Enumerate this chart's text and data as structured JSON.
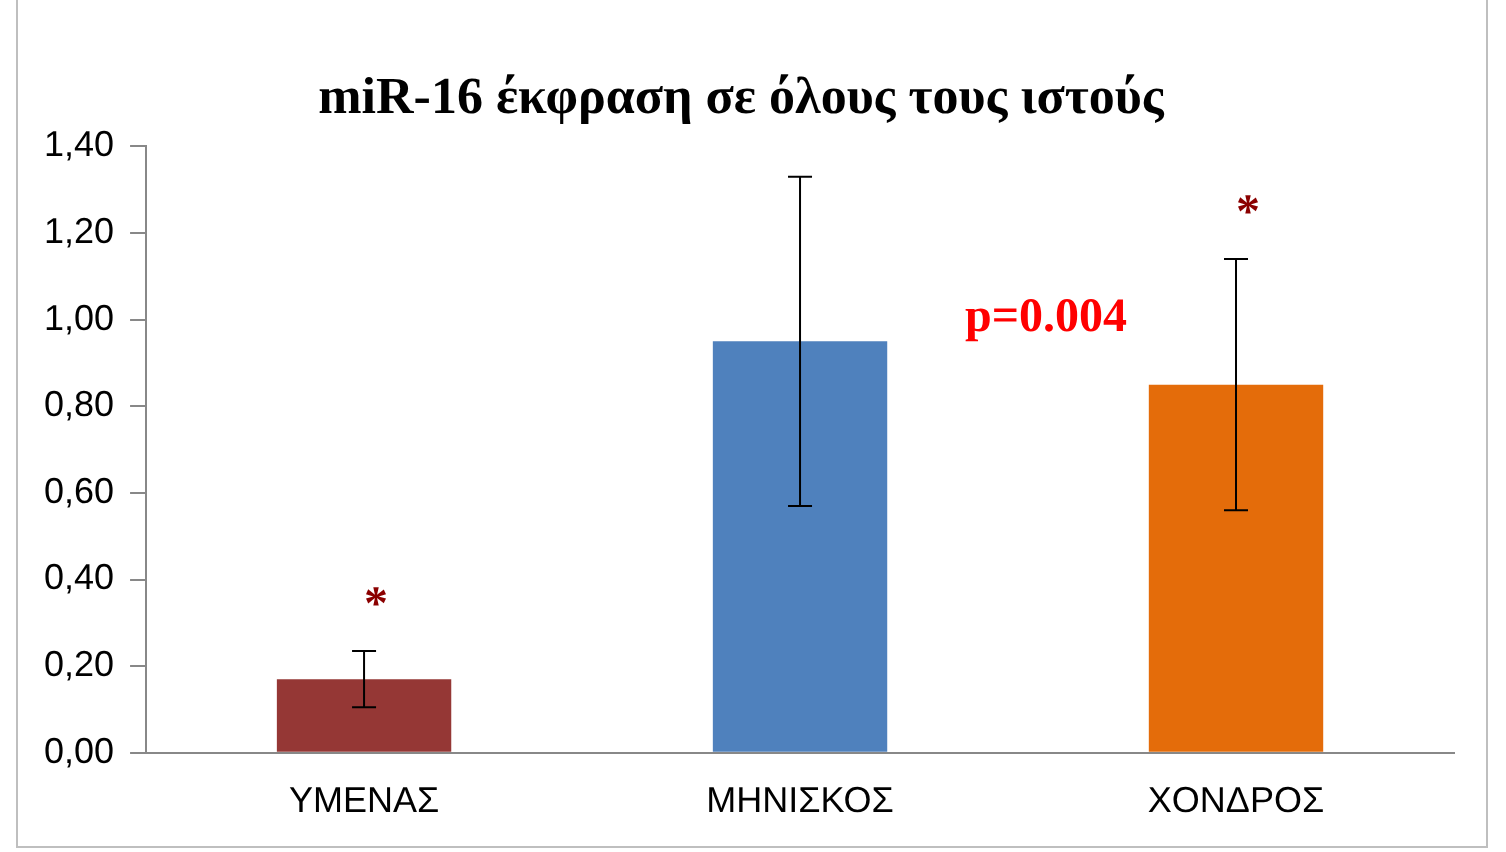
{
  "chart_data": {
    "type": "bar",
    "title": "miR-16 έκφραση σε όλους τους ιστούς",
    "categories": [
      "ΥΜΕΝΑΣ",
      "ΜΗΝΙΣΚΟΣ",
      "ΧΟΝΔΡΟΣ"
    ],
    "values": [
      0.17,
      0.95,
      0.85
    ],
    "colors": [
      "#953735",
      "#4f81bd",
      "#e46c0a"
    ],
    "errors": [
      0.065,
      0.38,
      0.29
    ],
    "ylim": [
      0,
      1.4
    ],
    "yticks": [
      {
        "value": 0,
        "label": "0,00"
      },
      {
        "value": 0.2,
        "label": "0,20"
      },
      {
        "value": 0.4,
        "label": "0,40"
      },
      {
        "value": 0.6,
        "label": "0,60"
      },
      {
        "value": 0.8,
        "label": "0,80"
      },
      {
        "value": 1.0,
        "label": "1,00"
      },
      {
        "value": 1.2,
        "label": "1,20"
      },
      {
        "value": 1.4,
        "label": "1,40"
      }
    ],
    "grid": false,
    "legend": false,
    "annotations": [
      "*",
      "*",
      "p=0.004"
    ]
  }
}
